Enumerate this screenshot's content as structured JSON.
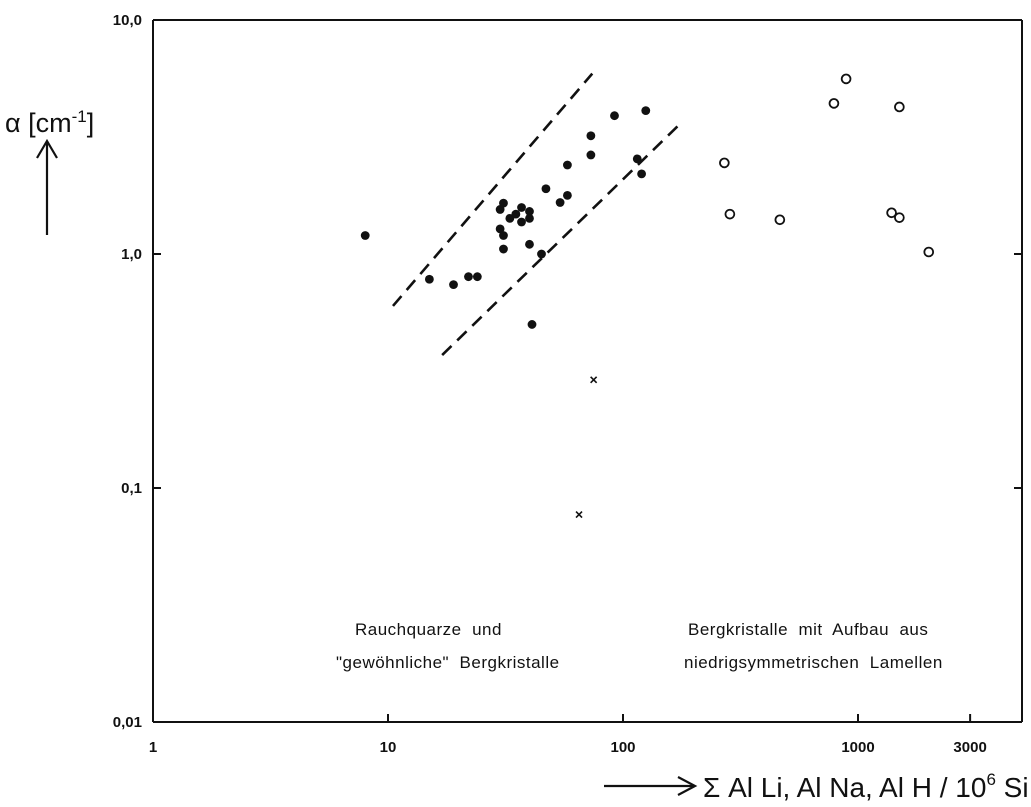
{
  "chart_data": {
    "type": "scatter",
    "title": "",
    "ylabel": "α [cm⁻¹]",
    "xlabel": "Σ Al Li, Al Na, Al H / 10⁶ Si",
    "xlabel_parts": {
      "main": "Σ Al Li, Al Na, Al H / 10",
      "sup": "6",
      "tail": " Si"
    },
    "ylabel_parts": {
      "main": "α [cm",
      "sup": "-1",
      "tail": "]"
    },
    "x_scale": "log",
    "y_scale": "log",
    "xlim": [
      1,
      5000
    ],
    "ylim": [
      0.01,
      10
    ],
    "x_ticks": [
      {
        "value": 1,
        "label": "1"
      },
      {
        "value": 10,
        "label": "10"
      },
      {
        "value": 100,
        "label": "100"
      },
      {
        "value": 1000,
        "label": "1000"
      },
      {
        "value": 3000,
        "label": "3000"
      }
    ],
    "y_ticks": [
      {
        "value": 10,
        "label": "10,0"
      },
      {
        "value": 1,
        "label": "1,0"
      },
      {
        "value": 0.1,
        "label": "0,1"
      },
      {
        "value": 0.01,
        "label": "0,01"
      }
    ],
    "grid": false,
    "series": [
      {
        "marker": "filled-circle",
        "points": [
          [
            8,
            1.2
          ],
          [
            15,
            0.78
          ],
          [
            19,
            0.74
          ],
          [
            22,
            0.8
          ],
          [
            24,
            0.8
          ],
          [
            30,
            1.55
          ],
          [
            30,
            1.28
          ],
          [
            31,
            1.65
          ],
          [
            31,
            1.2
          ],
          [
            31,
            1.05
          ],
          [
            33,
            1.42
          ],
          [
            35,
            1.48
          ],
          [
            37,
            1.37
          ],
          [
            37,
            1.58
          ],
          [
            40,
            1.52
          ],
          [
            40,
            1.42
          ],
          [
            40,
            1.1
          ],
          [
            41,
            0.5
          ],
          [
            45,
            1.0
          ],
          [
            47,
            1.9
          ],
          [
            54,
            1.66
          ],
          [
            58,
            2.4
          ],
          [
            58,
            1.78
          ],
          [
            73,
            3.2
          ],
          [
            73,
            2.65
          ],
          [
            92,
            3.9
          ],
          [
            115,
            2.55
          ],
          [
            120,
            2.2
          ],
          [
            125,
            4.1
          ]
        ]
      },
      {
        "marker": "open-circle",
        "points": [
          [
            270,
            2.45
          ],
          [
            285,
            1.48
          ],
          [
            465,
            1.4
          ],
          [
            790,
            4.4
          ],
          [
            890,
            5.6
          ],
          [
            1500,
            4.25
          ],
          [
            1390,
            1.5
          ],
          [
            1500,
            1.43
          ],
          [
            2000,
            1.02
          ]
        ]
      },
      {
        "marker": "cross",
        "points": [
          [
            75,
            0.29
          ],
          [
            65,
            0.077
          ]
        ]
      }
    ],
    "guide_lines": [
      {
        "style": "dashed",
        "from": [
          10.5,
          0.6
        ],
        "to": [
          74,
          5.9
        ]
      },
      {
        "style": "dashed",
        "from": [
          17,
          0.37
        ],
        "to": [
          175,
          3.6
        ]
      }
    ],
    "annotations": [
      {
        "id": "left",
        "lines": [
          "Rauchquarze  und",
          "\"gewöhnliche\"  Bergkristalle"
        ]
      },
      {
        "id": "right",
        "lines": [
          "Bergkristalle  mit  Aufbau  aus",
          "niedrigsymmetrischen  Lamellen"
        ]
      }
    ]
  }
}
